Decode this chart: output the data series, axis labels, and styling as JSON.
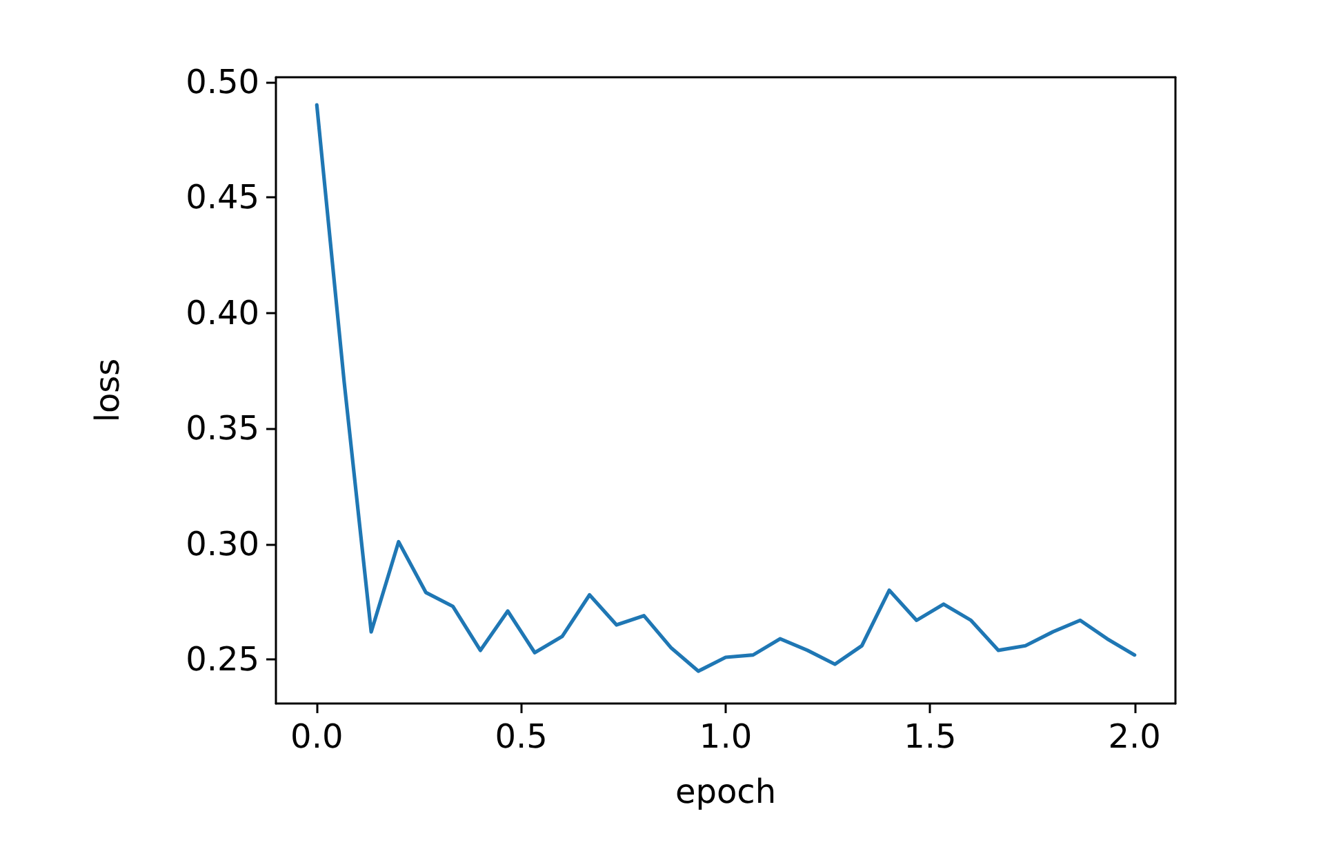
{
  "chart_data": {
    "type": "line",
    "xlabel": "epoch",
    "ylabel": "loss",
    "x": [
      0,
      0.067,
      0.133,
      0.2,
      0.267,
      0.333,
      0.4,
      0.467,
      0.533,
      0.6,
      0.667,
      0.733,
      0.8,
      0.867,
      0.933,
      1.0,
      1.067,
      1.133,
      1.2,
      1.267,
      1.333,
      1.4,
      1.467,
      1.533,
      1.6,
      1.667,
      1.733,
      1.8,
      1.867,
      1.933,
      2.0
    ],
    "series": [
      {
        "color": "#1f77b4",
        "values": [
          0.49,
          0.37,
          0.262,
          0.301,
          0.279,
          0.273,
          0.254,
          0.271,
          0.253,
          0.26,
          0.278,
          0.265,
          0.269,
          0.255,
          0.245,
          0.251,
          0.252,
          0.259,
          0.254,
          0.248,
          0.256,
          0.28,
          0.267,
          0.274,
          0.267,
          0.254,
          0.256,
          0.262,
          0.267,
          0.259,
          0.252
        ]
      }
    ],
    "xlim": [
      -0.1,
      2.1
    ],
    "ylim": [
      0.231,
      0.502
    ],
    "xticks": [
      {
        "value": 0,
        "label": "0.0"
      },
      {
        "value": 0.5,
        "label": "0.5"
      },
      {
        "value": 1,
        "label": "1.0"
      },
      {
        "value": 1.5,
        "label": "1.5"
      },
      {
        "value": 2,
        "label": "2.0"
      }
    ],
    "yticks": [
      {
        "value": 0.25,
        "label": "0.25"
      },
      {
        "value": 0.3,
        "label": "0.30"
      },
      {
        "value": 0.35,
        "label": "0.35"
      },
      {
        "value": 0.4,
        "label": "0.40"
      },
      {
        "value": 0.45,
        "label": "0.45"
      },
      {
        "value": 0.5,
        "label": "0.50"
      }
    ],
    "grid": false,
    "marker": "none",
    "line_style": "solid"
  }
}
